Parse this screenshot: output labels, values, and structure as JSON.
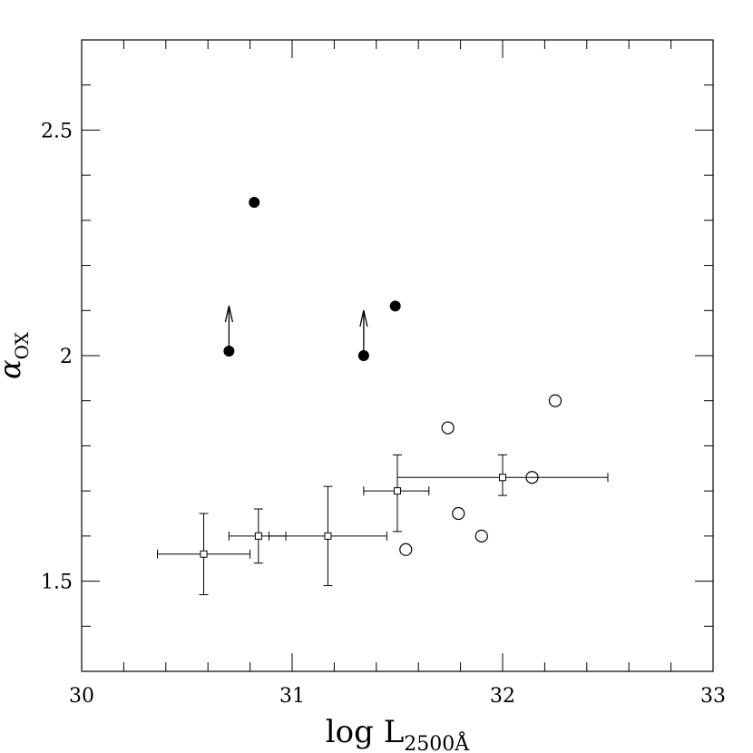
{
  "chart_data": {
    "type": "scatter",
    "xlabel": {
      "main": "log  L",
      "subscript": "2500Å"
    },
    "ylabel": {
      "main": "α",
      "subscript": "OX"
    },
    "xlim": [
      30,
      33
    ],
    "ylim": [
      1.3,
      2.7
    ],
    "xticks": [
      {
        "value": 30,
        "label": "30"
      },
      {
        "value": 31,
        "label": "31"
      },
      {
        "value": 32,
        "label": "32"
      },
      {
        "value": 33,
        "label": "33"
      }
    ],
    "yticks": [
      {
        "value": 1.5,
        "label": "1.5"
      },
      {
        "value": 2,
        "label": "2"
      },
      {
        "value": 2.5,
        "label": "2.5"
      }
    ],
    "x_minor_step": 0.2,
    "y_minor_step": 0.1,
    "grid": false,
    "series": [
      {
        "marker": "filled-circle",
        "points": [
          {
            "x": 30.82,
            "y": 2.34
          },
          {
            "x": 31.49,
            "y": 2.11
          },
          {
            "x": 30.7,
            "y": 2.01,
            "lower_limit": true
          },
          {
            "x": 31.34,
            "y": 2.0,
            "lower_limit": true
          }
        ]
      },
      {
        "marker": "open-circle",
        "points": [
          {
            "x": 31.54,
            "y": 1.57
          },
          {
            "x": 31.74,
            "y": 1.84
          },
          {
            "x": 31.79,
            "y": 1.65
          },
          {
            "x": 31.9,
            "y": 1.6
          },
          {
            "x": 32.14,
            "y": 1.73
          },
          {
            "x": 32.25,
            "y": 1.9
          }
        ]
      },
      {
        "marker": "open-square-errorbar",
        "points": [
          {
            "x": 30.58,
            "y": 1.56,
            "xerr": [
              30.36,
              30.8
            ],
            "yerr": [
              1.47,
              1.65
            ]
          },
          {
            "x": 30.84,
            "y": 1.6,
            "xerr": [
              30.7,
              30.97
            ],
            "yerr": [
              1.54,
              1.66
            ]
          },
          {
            "x": 31.17,
            "y": 1.6,
            "xerr": [
              30.89,
              31.45
            ],
            "yerr": [
              1.49,
              1.71
            ]
          },
          {
            "x": 31.5,
            "y": 1.7,
            "xerr": [
              31.34,
              31.65
            ],
            "yerr": [
              1.61,
              1.78
            ]
          },
          {
            "x": 32.0,
            "y": 1.73,
            "xerr": [
              31.5,
              32.5
            ],
            "yerr": [
              1.69,
              1.78
            ]
          }
        ]
      }
    ]
  }
}
